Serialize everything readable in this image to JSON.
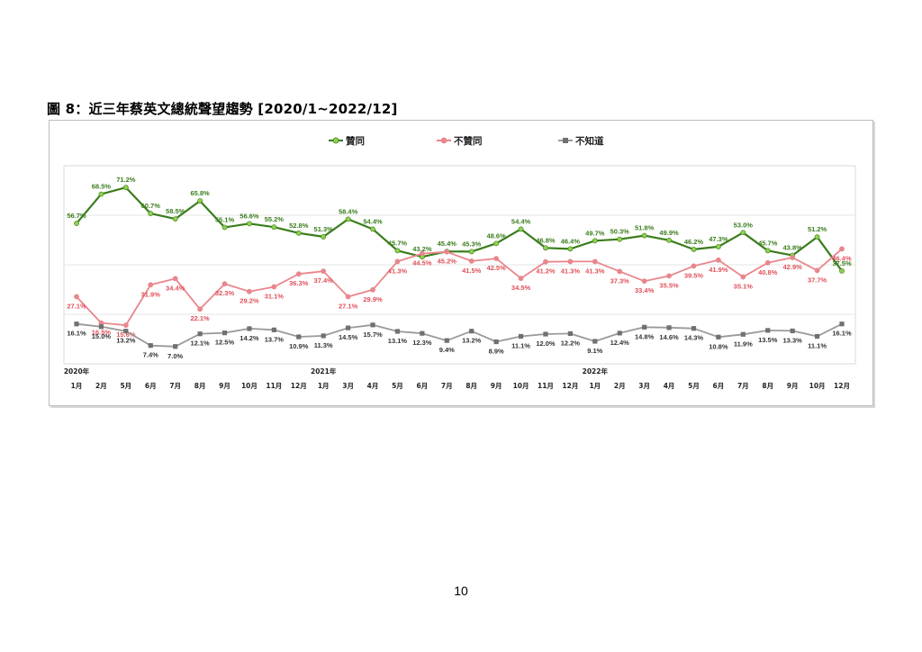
{
  "document": {
    "figure_title": "圖 8：近三年蔡英文總統聲望趨勢  [2020/1~2022/12]",
    "page_number": "10"
  },
  "chart_data": {
    "type": "line",
    "title": "",
    "xlabel": "",
    "ylabel": "",
    "ylim": [
      0,
      80
    ],
    "grid": true,
    "legend_position": "top-center",
    "categories": [
      "1月",
      "2月",
      "5月",
      "6月",
      "7月",
      "8月",
      "9月",
      "10月",
      "11月",
      "12月",
      "1月",
      "3月",
      "4月",
      "5月",
      "6月",
      "7月",
      "8月",
      "9月",
      "10月",
      "11月",
      "12月",
      "1月",
      "2月",
      "3月",
      "4月",
      "5月",
      "6月",
      "7月",
      "8月",
      "9月",
      "10月",
      "12月"
    ],
    "year_labels": [
      {
        "index": 0,
        "text": "2020年"
      },
      {
        "index": 10,
        "text": "2021年"
      },
      {
        "index": 21,
        "text": "2022年"
      }
    ],
    "series": [
      {
        "name": "贊同",
        "color": "#3a7d1c",
        "marker": "#8fd14f",
        "label_color": "#3a7d1c",
        "values": [
          56.7,
          68.5,
          71.2,
          60.7,
          58.5,
          65.8,
          55.1,
          56.6,
          55.2,
          52.8,
          51.3,
          58.4,
          54.4,
          45.7,
          43.2,
          45.4,
          45.3,
          48.6,
          54.4,
          46.8,
          46.4,
          49.7,
          50.3,
          51.8,
          49.9,
          46.2,
          47.3,
          53.0,
          45.7,
          43.8,
          51.2,
          37.5
        ]
      },
      {
        "name": "不贊同",
        "color": "#e8868c",
        "marker": "#e8868c",
        "label_color": "#e0505a",
        "values": [
          27.1,
          16.5,
          15.6,
          31.9,
          34.4,
          22.1,
          32.3,
          29.2,
          31.1,
          36.3,
          37.4,
          27.1,
          29.9,
          41.3,
          44.5,
          45.2,
          41.5,
          42.5,
          34.5,
          41.2,
          41.3,
          41.3,
          37.3,
          33.4,
          35.5,
          39.5,
          41.9,
          35.1,
          40.8,
          42.9,
          37.7,
          46.4
        ]
      },
      {
        "name": "不知道",
        "color": "#9a9a9a",
        "marker": "#707070",
        "label_color": "#333333",
        "values": [
          16.1,
          15.0,
          13.2,
          7.4,
          7.0,
          12.1,
          12.5,
          14.2,
          13.7,
          10.9,
          11.3,
          14.5,
          15.7,
          13.1,
          12.3,
          9.4,
          13.2,
          8.9,
          11.1,
          12.0,
          12.2,
          9.1,
          12.4,
          14.8,
          14.6,
          14.3,
          10.8,
          11.9,
          13.5,
          13.3,
          11.1,
          16.1
        ]
      }
    ]
  }
}
